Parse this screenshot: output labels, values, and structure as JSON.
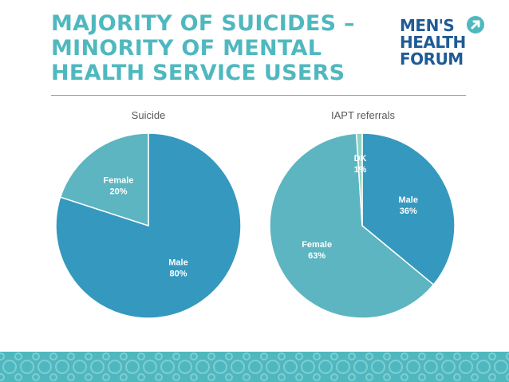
{
  "slide": {
    "title_lines": [
      "MAJORITY OF SUICIDES –",
      "MINORITY OF MENTAL",
      "HEALTH SERVICE USERS"
    ],
    "logo_lines": [
      "MEN'S",
      "HEALTH",
      "FORUM"
    ],
    "colors": {
      "title": "#4fb8bf",
      "logo": "#1f5b95",
      "male": "#3598bf",
      "female": "#5cb5c0",
      "dk": "#8fd1c2",
      "footer": "#4fb8bf"
    }
  },
  "chart_data": [
    {
      "type": "pie",
      "title": "Suicide",
      "slices": [
        {
          "label": "Male",
          "value_label": "80%",
          "value": 80
        },
        {
          "label": "Female",
          "value_label": "20%",
          "value": 20
        }
      ]
    },
    {
      "type": "pie",
      "title": "IAPT referrals",
      "slices": [
        {
          "label": "Male",
          "value_label": "36%",
          "value": 36
        },
        {
          "label": "Female",
          "value_label": "63%",
          "value": 63
        },
        {
          "label": "DK",
          "value_label": "1%",
          "value": 1
        }
      ]
    }
  ]
}
